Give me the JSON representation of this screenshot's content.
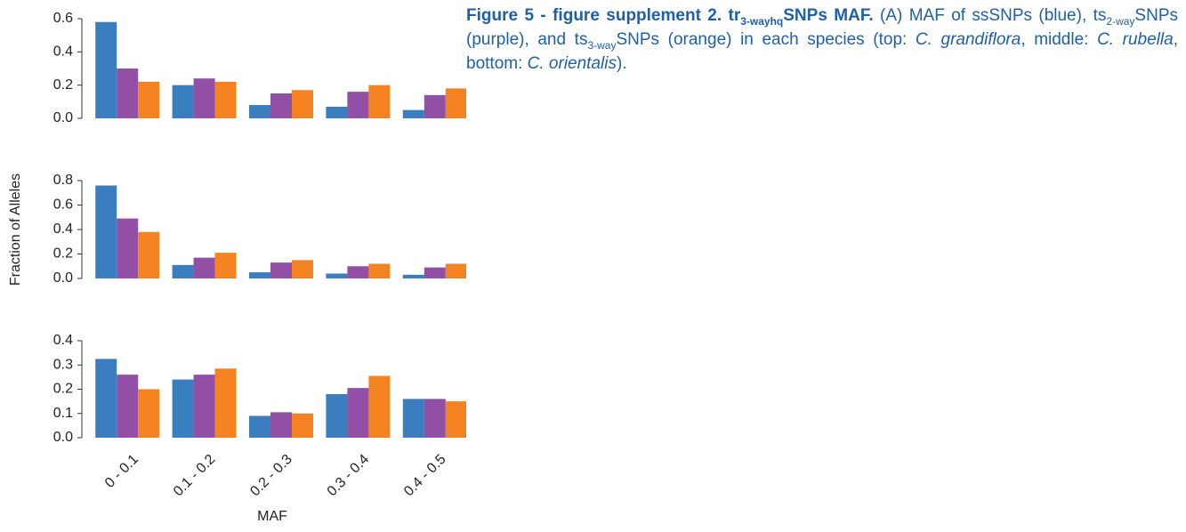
{
  "chart_data": [
    {
      "type": "bar",
      "categories": [
        null,
        null,
        null,
        null,
        null
      ],
      "ylim": [
        0,
        0.6
      ],
      "yticks": [
        {
          "value": 0,
          "label": "0.0"
        },
        0.2,
        0.4,
        0.6
      ],
      "series": [
        {
          "color": "#3a7ebf",
          "values": [
            0.58,
            0.2,
            0.08,
            0.07,
            0.05
          ]
        },
        {
          "color": "#9150a5",
          "values": [
            0.3,
            0.24,
            0.15,
            0.16,
            0.14
          ]
        },
        {
          "color": "#f58220",
          "values": [
            0.22,
            0.22,
            0.17,
            0.2,
            0.18
          ]
        }
      ]
    },
    {
      "type": "bar",
      "ylabel": "Fraction of Alleles",
      "categories": [
        null,
        null,
        null,
        null,
        null
      ],
      "ylim": [
        0,
        0.8
      ],
      "yticks": [
        {
          "value": 0,
          "label": "0.0"
        },
        0.2,
        0.4,
        0.6,
        0.8
      ],
      "series": [
        {
          "color": "#3a7ebf",
          "values": [
            0.76,
            0.11,
            0.05,
            0.04,
            0.03
          ]
        },
        {
          "color": "#9150a5",
          "values": [
            0.49,
            0.17,
            0.13,
            0.1,
            0.09
          ]
        },
        {
          "color": "#f58220",
          "values": [
            0.38,
            0.21,
            0.15,
            0.12,
            0.12
          ]
        }
      ]
    },
    {
      "type": "bar",
      "xlabel": "MAF",
      "categories": [
        "0 - 0.1",
        "0.1 - 0.2",
        "0.2 - 0.3",
        "0.3 - 0.4",
        "0.4 - 0.5"
      ],
      "ylim": [
        0,
        0.4
      ],
      "yticks": [
        {
          "value": 0,
          "label": "0.0"
        },
        0.1,
        0.2,
        0.3,
        0.4
      ],
      "series": [
        {
          "color": "#3a7ebf",
          "values": [
            0.325,
            0.24,
            0.09,
            0.18,
            0.16
          ]
        },
        {
          "color": "#9150a5",
          "values": [
            0.26,
            0.26,
            0.105,
            0.205,
            0.16
          ]
        },
        {
          "color": "#f58220",
          "values": [
            0.2,
            0.285,
            0.1,
            0.255,
            0.15
          ]
        }
      ]
    }
  ],
  "caption": {
    "parts": [
      "Figure 5 - figure supplement 2. tr",
      "3-wayhq",
      "SNPs MAF.",
      " (A) MAF of ssSNPs (blue), ts",
      "2-way",
      "SNPs (purple), and ts",
      "3-way",
      "SNPs (orange) in each species (top: ",
      "C. grandiflora",
      ", middle: ",
      "C. rubella",
      ", bottom: ",
      "C. orientalis",
      ")."
    ]
  }
}
